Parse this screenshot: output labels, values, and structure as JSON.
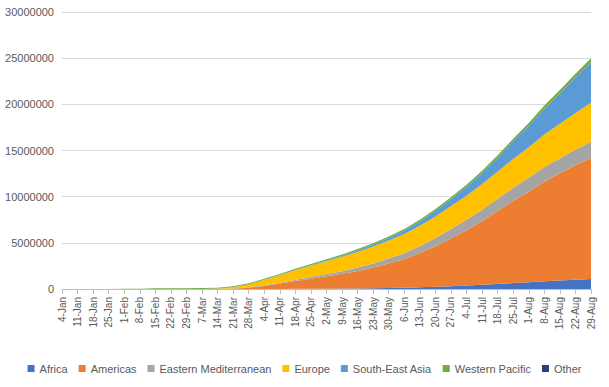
{
  "chart_data": {
    "type": "area",
    "stacked": true,
    "grid": true,
    "legend": "bottom",
    "categories": [
      "4-Jan",
      "11-Jan",
      "18-Jan",
      "25-Jan",
      "1-Feb",
      "8-Feb",
      "15-Feb",
      "22-Feb",
      "29-Feb",
      "7-Mar",
      "14-Mar",
      "21-Mar",
      "28-Mar",
      "4-Apr",
      "11-Apr",
      "18-Apr",
      "25-Apr",
      "2-May",
      "9-May",
      "16-May",
      "23-May",
      "30-May",
      "6-Jun",
      "13-Jun",
      "20-Jun",
      "27-Jun",
      "4-Jul",
      "11-Jul",
      "18-Jul",
      "25-Jul",
      "1-Aug",
      "8-Aug",
      "15-Aug",
      "22-Aug",
      "29-Aug"
    ],
    "ylim": [
      0,
      30000000
    ],
    "yticks": [
      0,
      5000000,
      10000000,
      15000000,
      20000000,
      25000000,
      30000000
    ],
    "series": [
      {
        "name": "Africa",
        "color": "#4472c4",
        "values": [
          0,
          0,
          0,
          0,
          0,
          0,
          0,
          0,
          2,
          30,
          200,
          1000,
          3000,
          6000,
          10000,
          16000,
          23000,
          33000,
          45000,
          60000,
          80000,
          110000,
          145000,
          190000,
          240000,
          300000,
          370000,
          450000,
          540000,
          640000,
          740000,
          840000,
          930000,
          1010000,
          1080000
        ]
      },
      {
        "name": "Americas",
        "color": "#ed7d31",
        "values": [
          0,
          0,
          0,
          0,
          0,
          0,
          0,
          15,
          90,
          500,
          3000,
          35000,
          140000,
          330000,
          580000,
          850000,
          1100000,
          1350000,
          1600000,
          1900000,
          2250000,
          2650000,
          3100000,
          3700000,
          4400000,
          5200000,
          6000000,
          6900000,
          7900000,
          8900000,
          9800000,
          10800000,
          11600000,
          12400000,
          13100000
        ]
      },
      {
        "name": "Eastern Mediterranean",
        "color": "#a5a5a5",
        "values": [
          0,
          0,
          0,
          0,
          0,
          0,
          0,
          60,
          600,
          5500,
          13000,
          25000,
          45000,
          70000,
          100000,
          140000,
          180000,
          230000,
          290000,
          360000,
          440000,
          530000,
          640000,
          760000,
          890000,
          1010000,
          1120000,
          1230000,
          1330000,
          1420000,
          1500000,
          1570000,
          1640000,
          1710000,
          1780000
        ]
      },
      {
        "name": "Europe",
        "color": "#ffc000",
        "values": [
          0,
          0,
          0,
          0,
          0,
          0,
          0,
          50,
          1100,
          6000,
          30000,
          140000,
          330000,
          580000,
          810000,
          1030000,
          1220000,
          1400000,
          1560000,
          1700000,
          1830000,
          1960000,
          2080000,
          2200000,
          2330000,
          2470000,
          2620000,
          2780000,
          2950000,
          3130000,
          3320000,
          3520000,
          3720000,
          3950000,
          4200000
        ]
      },
      {
        "name": "South-East Asia",
        "color": "#5b9bd5",
        "values": [
          0,
          0,
          0,
          10,
          20,
          30,
          30,
          30,
          45,
          150,
          400,
          1300,
          3500,
          8000,
          15000,
          25000,
          40000,
          65000,
          100000,
          140000,
          190000,
          260000,
          350000,
          460000,
          590000,
          750000,
          950000,
          1200000,
          1500000,
          1900000,
          2300000,
          2800000,
          3300000,
          3850000,
          4400000
        ]
      },
      {
        "name": "Western Pacific",
        "color": "#70ad47",
        "values": [
          0,
          0,
          0,
          2000,
          14000,
          37000,
          68000,
          78000,
          83000,
          90000,
          94000,
          98000,
          104000,
          112000,
          119000,
          126000,
          133000,
          141000,
          151000,
          159000,
          166000,
          175000,
          184000,
          193000,
          203000,
          213000,
          226000,
          241000,
          260000,
          282000,
          311000,
          340000,
          368000,
          396000,
          425000
        ]
      },
      {
        "name": "Other",
        "color": "#264478",
        "values": [
          0,
          0,
          0,
          0,
          0,
          60,
          350,
          630,
          700,
          700,
          712,
          712,
          712,
          712,
          712,
          712,
          712,
          712,
          712,
          712,
          712,
          712,
          712,
          712,
          712,
          741,
          741,
          741,
          741,
          741,
          741,
          741,
          741,
          741,
          741
        ]
      }
    ]
  }
}
